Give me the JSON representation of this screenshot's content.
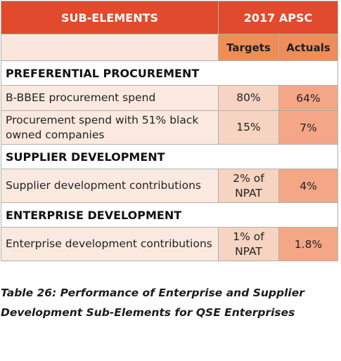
{
  "table": {
    "header": {
      "col1": "SUB-ELEMENTS",
      "col2": "2017 APSC"
    },
    "subheader": {
      "targets": "Targets",
      "actuals": "Actuals"
    },
    "sections": [
      {
        "title": "PREFERENTIAL PROCUREMENT",
        "rows": [
          {
            "label": "B-BBEE procurement spend",
            "target": "80%",
            "actual": "64%"
          },
          {
            "label": "Procurement spend with 51% black owned companies",
            "target": "15%",
            "actual": "7%"
          }
        ]
      },
      {
        "title": "SUPPLIER DEVELOPMENT",
        "rows": [
          {
            "label": "Supplier development contributions",
            "target": "2% of NPAT",
            "actual": "4%"
          }
        ]
      },
      {
        "title": "ENTERPRISE DEVELOPMENT",
        "rows": [
          {
            "label": "Enterprise development contributions",
            "target": "1% of NPAT",
            "actual": "1.8%"
          }
        ]
      }
    ]
  },
  "caption": "Table 26: Performance of Enterprise and Supplier Development Sub-Elements for QSE Enterprises",
  "colors": {
    "header_bg": "#e14a2d",
    "subheader_bg": "#ef8d57",
    "label_cell_bg": "#fbe9df",
    "target_cell_bg": "#f6d4c1",
    "actual_cell_bg": "#f4a686"
  }
}
